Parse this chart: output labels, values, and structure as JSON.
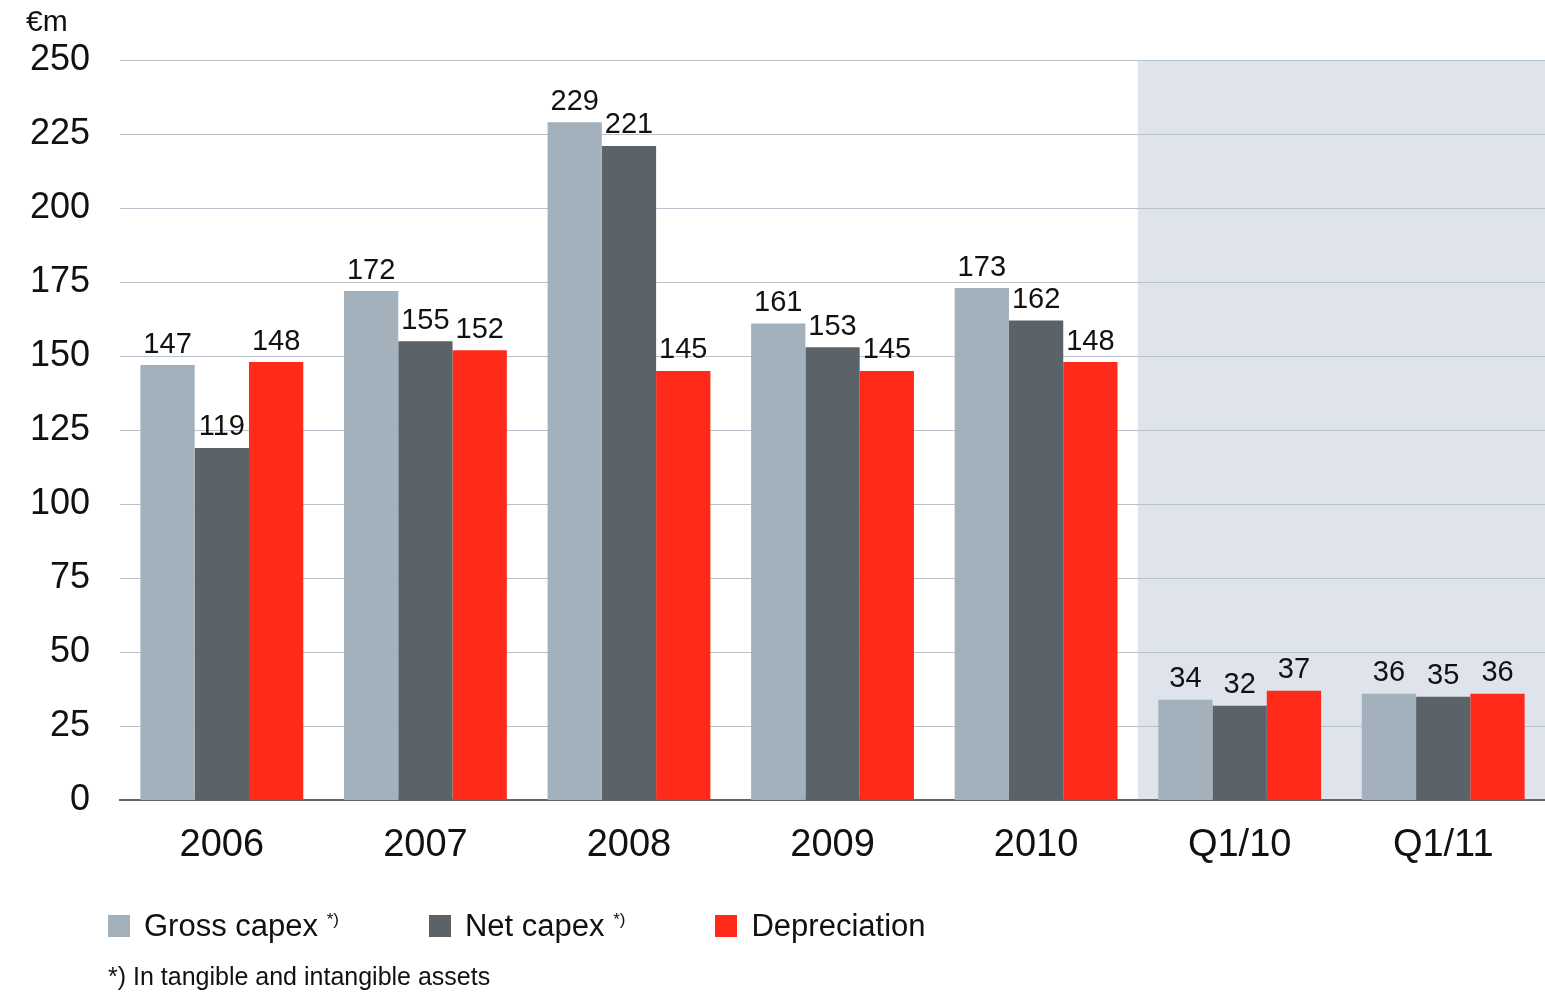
{
  "chart_data": {
    "type": "bar",
    "ylabel": "€m",
    "categories": [
      "2006",
      "2007",
      "2008",
      "2009",
      "2010",
      "Q1/10",
      "Q1/11"
    ],
    "series": [
      {
        "name": "Gross capex $^{*)}$",
        "color": "#a3b1bd",
        "values": [
          147,
          172,
          229,
          161,
          173,
          34,
          36
        ]
      },
      {
        "name": "Net capex $^{*)}$",
        "color": "#5b6268",
        "values": [
          119,
          155,
          221,
          153,
          162,
          32,
          35
        ]
      },
      {
        "name": "Depreciation",
        "color": "#ff2a1a",
        "values": [
          148,
          152,
          145,
          145,
          148,
          37,
          36
        ]
      }
    ],
    "ylim": [
      0,
      250
    ],
    "yticks": [
      0,
      25,
      50,
      75,
      100,
      125,
      150,
      175,
      200,
      225,
      250
    ],
    "grid": "y",
    "legend": "bottom",
    "data_labels": true,
    "bands": [
      {
        "axis": "x",
        "from": "Q1/10",
        "to": "Q1/11",
        "color": "#dfe3eb"
      }
    ],
    "annotations": [
      "*) In tangible and intangible assets"
    ]
  }
}
